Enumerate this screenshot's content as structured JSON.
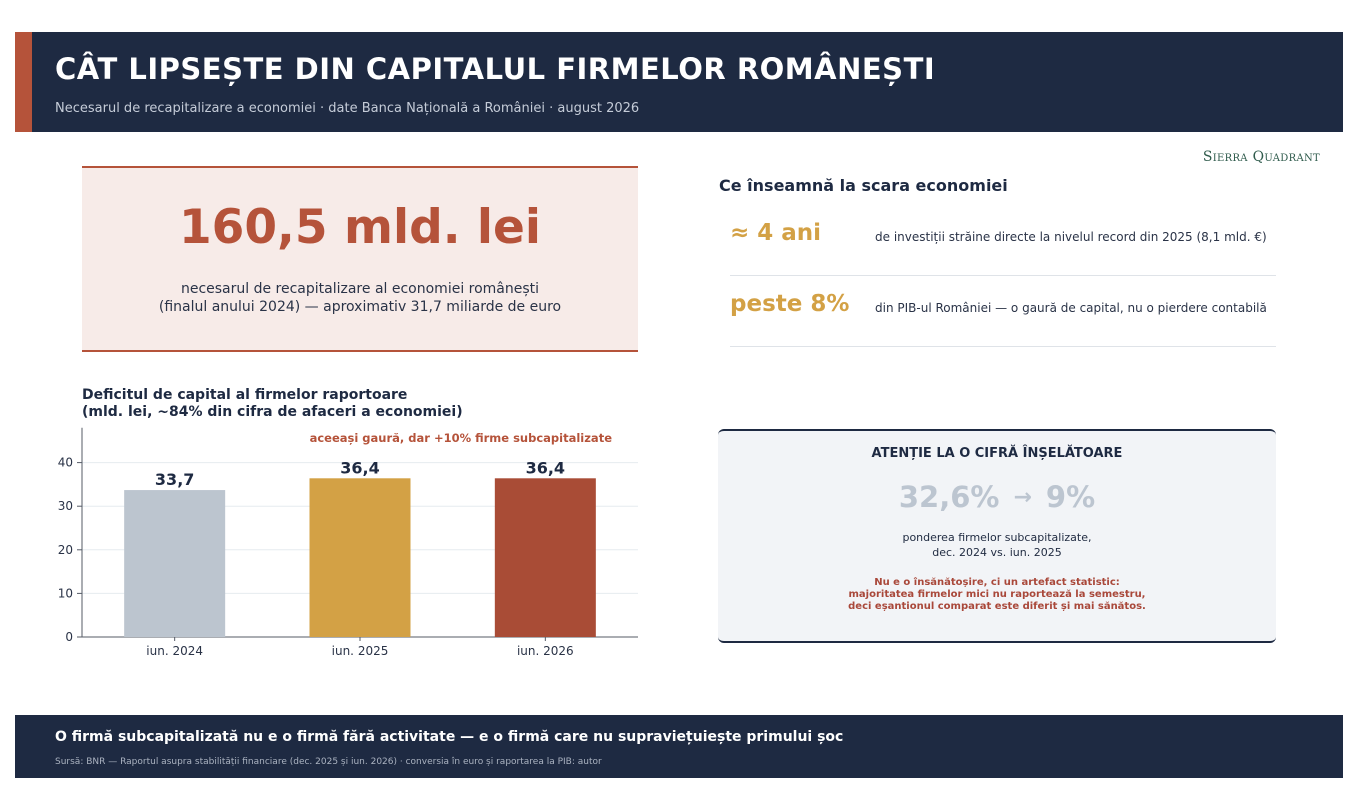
{
  "header": {
    "title": "CÂT LIPSEȘTE DIN CAPITALUL FIRMELOR ROMÂNEȘTI",
    "subtitle": "Necesarul de recapitalizare a economiei · date Banca Națională a României · august 2026",
    "accent_color": "#b5533a",
    "background_color": "#1e2a42"
  },
  "brand": "Sierra Quadrant",
  "hero": {
    "value": "160,5 mld. lei",
    "description_line1": "necesarul de recapitalizare al economiei românești",
    "description_line2": "(finalul anului 2024) — aproximativ 31,7 miliarde de euro"
  },
  "economy": {
    "heading": "Ce înseamnă la scara economiei",
    "rows": [
      {
        "value": "≈ 4 ani",
        "text": "de investiții străine directe la nivelul record din 2025 (8,1 mld. €)"
      },
      {
        "value": "peste 8%",
        "text": "din PIB-ul României — o gaură de capital, nu o pierdere contabilă"
      }
    ]
  },
  "chart_title": {
    "line1": "Deficitul de capital al firmelor raportoare",
    "line2": "(mld. lei, ~84% din cifra de afaceri a economiei)"
  },
  "chart_data": {
    "type": "bar",
    "categories": [
      "iun. 2024",
      "iun. 2025",
      "iun. 2026"
    ],
    "values": [
      33.7,
      36.4,
      36.4
    ],
    "value_labels": [
      "33,7",
      "36,4",
      "36,4"
    ],
    "colors": [
      "#bcc5cf",
      "#d3a145",
      "#a94c36"
    ],
    "annotation": "aceeași gaură, dar +10% firme subcapitalizate",
    "ylim": [
      0,
      48
    ],
    "yticks": [
      0,
      10,
      20,
      30,
      40
    ],
    "grid": true,
    "xlabel": "",
    "ylabel": ""
  },
  "warning": {
    "heading": "ATENȚIE LA O CIFRĂ ÎNȘELĂTOARE",
    "value_from": "32,6%",
    "arrow": "→",
    "value_to": "9%",
    "desc_line1": "ponderea firmelor subcapitalizate,",
    "desc_line2": "dec. 2024 vs. iun. 2025",
    "note_line1": "Nu e o însănătoșire, ci un artefact statistic:",
    "note_line2": "majoritatea firmelor mici nu raportează la semestru,",
    "note_line3": "deci eșantionul comparat este diferit și mai sănătos."
  },
  "footer": {
    "main": "O firmă subcapitalizată nu e o firmă fără activitate — e o firmă care nu supraviețuiește primului șoc",
    "source": "Sursă: BNR — Raportul asupra stabilității financiare (dec. 2025 și iun. 2026) · conversia în euro și raportarea la PIB: autor"
  }
}
